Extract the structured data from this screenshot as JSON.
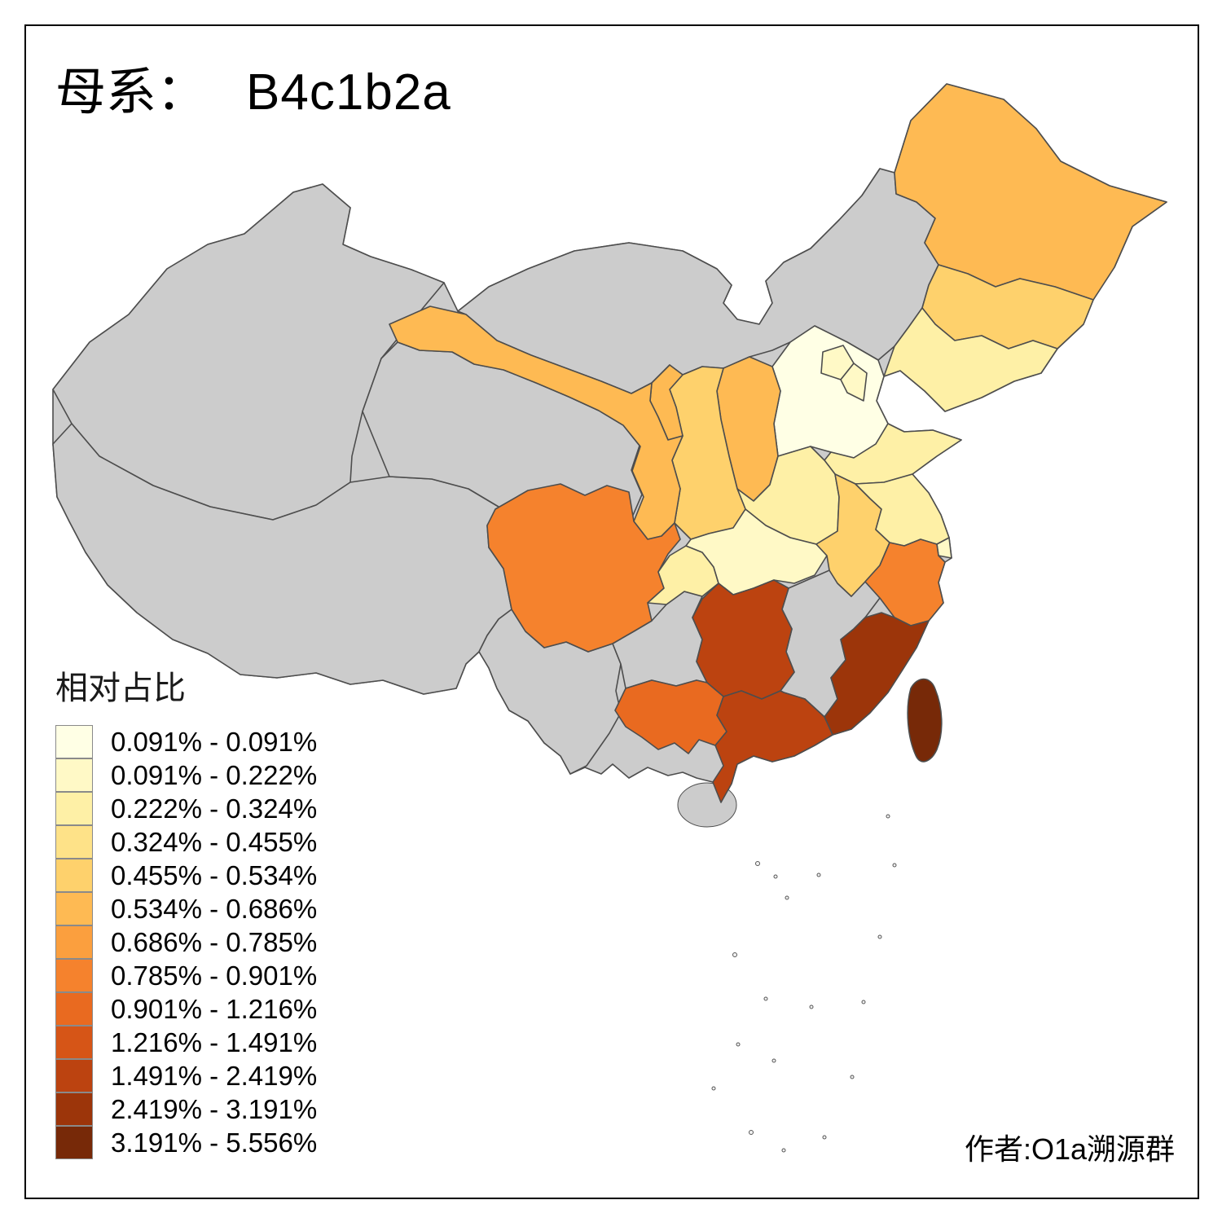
{
  "title": {
    "prefix": "母系：",
    "value": "B4c1b2a"
  },
  "author": "作者:O1a溯源群",
  "legend": {
    "title": "相对占比",
    "bins": [
      {
        "label": "0.091% - 0.091%",
        "color": "#FFFFE5"
      },
      {
        "label": "0.091% - 0.222%",
        "color": "#FFF9C6"
      },
      {
        "label": "0.222% - 0.324%",
        "color": "#FEF0A6"
      },
      {
        "label": "0.324% - 0.455%",
        "color": "#FEE288"
      },
      {
        "label": "0.455% - 0.534%",
        "color": "#FED16C"
      },
      {
        "label": "0.534% - 0.686%",
        "color": "#FEBA53"
      },
      {
        "label": "0.686% - 0.785%",
        "color": "#FB9F3E"
      },
      {
        "label": "0.785% - 0.901%",
        "color": "#F5822D"
      },
      {
        "label": "0.901% - 1.216%",
        "color": "#E96A20"
      },
      {
        "label": "1.216% - 1.491%",
        "color": "#D65517"
      },
      {
        "label": "1.491% - 2.419%",
        "color": "#BC4310"
      },
      {
        "label": "2.419% - 3.191%",
        "color": "#9C350A"
      },
      {
        "label": "3.191% - 5.556%",
        "color": "#772908"
      }
    ]
  },
  "map": {
    "no_data_color": "#CCCCCC",
    "border_color": "#4D4D4D",
    "sea_island_color": "#F2F2F2",
    "provinces": [
      {
        "id": "xinjiang",
        "bin": null
      },
      {
        "id": "xizang",
        "bin": null
      },
      {
        "id": "qinghai",
        "bin": null
      },
      {
        "id": "neimenggu",
        "bin": null
      },
      {
        "id": "yunnan",
        "bin": null
      },
      {
        "id": "guizhou",
        "bin": null
      },
      {
        "id": "jiangxi",
        "bin": null
      },
      {
        "id": "hainan",
        "bin": null
      },
      {
        "id": "heilongjiang",
        "bin": 5
      },
      {
        "id": "jilin",
        "bin": 4
      },
      {
        "id": "liaoning",
        "bin": 2
      },
      {
        "id": "hebei",
        "bin": 0
      },
      {
        "id": "beijing",
        "bin": 1
      },
      {
        "id": "tianjin",
        "bin": 1
      },
      {
        "id": "shanxi",
        "bin": 5
      },
      {
        "id": "shandong",
        "bin": 2
      },
      {
        "id": "henan",
        "bin": 2
      },
      {
        "id": "shaanxi",
        "bin": 4
      },
      {
        "id": "ningxia",
        "bin": 5
      },
      {
        "id": "gansu",
        "bin": 5
      },
      {
        "id": "sichuan",
        "bin": 7
      },
      {
        "id": "chongqing",
        "bin": 2
      },
      {
        "id": "hubei",
        "bin": 1
      },
      {
        "id": "anhui",
        "bin": 4
      },
      {
        "id": "jiangsu",
        "bin": 2
      },
      {
        "id": "shanghai",
        "bin": 1
      },
      {
        "id": "zhejiang",
        "bin": 7
      },
      {
        "id": "hunan",
        "bin": 10
      },
      {
        "id": "guangxi",
        "bin": 8
      },
      {
        "id": "guangdong",
        "bin": 10
      },
      {
        "id": "fujian",
        "bin": 11
      },
      {
        "id": "taiwan",
        "bin": 12
      }
    ]
  }
}
